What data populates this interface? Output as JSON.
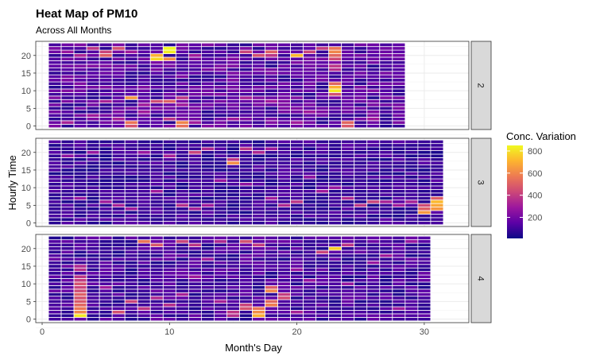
{
  "chart_data": {
    "type": "heatmap",
    "title": "Heat Map of PM10",
    "subtitle": "Across All Months",
    "xlabel": "Month's Day",
    "ylabel": "Hourly Time",
    "xlim": [
      -0.5,
      33.5
    ],
    "ylim": [
      -1,
      24
    ],
    "x_ticks": [
      0,
      10,
      20,
      30
    ],
    "y_ticks": [
      0,
      5,
      10,
      15,
      20
    ],
    "grid": true,
    "legend": {
      "title": "Conc. Variation",
      "position": "right",
      "min": 10,
      "max": 850,
      "ticks": [
        200,
        400,
        600,
        800
      ],
      "colors": [
        "#0d0887",
        "#5c01a6",
        "#9c179e",
        "#cc4778",
        "#ed7953",
        "#fdb42f",
        "#f0f921"
      ]
    },
    "panels": [
      {
        "strip": "2",
        "days": 28,
        "base": 140,
        "hot": [
          [
            2,
            21,
            280
          ],
          [
            3,
            20,
            330
          ],
          [
            4,
            22,
            380
          ],
          [
            5,
            21,
            420
          ],
          [
            5,
            20,
            500
          ],
          [
            6,
            22,
            460
          ],
          [
            7,
            21,
            300
          ],
          [
            9,
            19,
            780
          ],
          [
            9,
            20,
            700
          ],
          [
            10,
            21,
            820
          ],
          [
            10,
            22,
            850
          ],
          [
            10,
            19,
            620
          ],
          [
            12,
            20,
            300
          ],
          [
            16,
            21,
            420
          ],
          [
            17,
            20,
            460
          ],
          [
            18,
            21,
            500
          ],
          [
            18,
            20,
            380
          ],
          [
            20,
            20,
            720
          ],
          [
            21,
            21,
            420
          ],
          [
            22,
            22,
            400
          ],
          [
            23,
            20,
            520
          ],
          [
            23,
            21,
            600
          ],
          [
            23,
            22,
            560
          ],
          [
            23,
            19,
            440
          ],
          [
            23,
            17,
            380
          ],
          [
            23,
            16,
            360
          ],
          [
            23,
            10,
            820
          ],
          [
            23,
            11,
            700
          ],
          [
            23,
            12,
            520
          ],
          [
            23,
            9,
            460
          ],
          [
            5,
            7,
            320
          ],
          [
            7,
            8,
            640
          ],
          [
            8,
            6,
            300
          ],
          [
            9,
            7,
            440
          ],
          [
            10,
            7,
            500
          ],
          [
            11,
            6,
            300
          ],
          [
            11,
            8,
            380
          ],
          [
            11,
            1,
            600
          ],
          [
            11,
            0,
            540
          ],
          [
            10,
            2,
            380
          ],
          [
            12,
            1,
            300
          ],
          [
            6,
            2,
            320
          ],
          [
            7,
            1,
            560
          ],
          [
            7,
            0,
            460
          ],
          [
            8,
            4,
            300
          ],
          [
            24,
            1,
            520
          ],
          [
            24,
            0,
            480
          ],
          [
            4,
            3,
            300
          ],
          [
            2,
            1,
            320
          ],
          [
            15,
            2,
            300
          ],
          [
            20,
            1,
            300
          ],
          [
            16,
            8,
            320
          ],
          [
            18,
            7,
            300
          ],
          [
            21,
            4,
            300
          ],
          [
            26,
            2,
            300
          ]
        ]
      },
      {
        "strip": "3",
        "days": 31,
        "base": 90,
        "hot": [
          [
            31,
            6,
            720
          ],
          [
            31,
            5,
            680
          ],
          [
            31,
            4,
            640
          ],
          [
            31,
            7,
            500
          ],
          [
            30,
            3,
            640
          ],
          [
            30,
            4,
            500
          ],
          [
            30,
            5,
            440
          ],
          [
            15,
            17,
            620
          ],
          [
            15,
            18,
            380
          ],
          [
            12,
            20,
            420
          ],
          [
            13,
            21,
            340
          ],
          [
            16,
            21,
            380
          ],
          [
            17,
            20,
            340
          ],
          [
            18,
            21,
            300
          ],
          [
            26,
            6,
            420
          ],
          [
            25,
            5,
            380
          ],
          [
            24,
            7,
            340
          ],
          [
            27,
            6,
            320
          ],
          [
            28,
            5,
            300
          ],
          [
            29,
            6,
            320
          ],
          [
            20,
            6,
            380
          ],
          [
            19,
            5,
            340
          ],
          [
            18,
            7,
            300
          ],
          [
            11,
            5,
            360
          ],
          [
            12,
            4,
            320
          ],
          [
            13,
            5,
            300
          ],
          [
            5,
            6,
            300
          ],
          [
            6,
            5,
            320
          ],
          [
            7,
            4,
            300
          ],
          [
            3,
            7,
            280
          ],
          [
            22,
            9,
            300
          ],
          [
            23,
            10,
            280
          ],
          [
            9,
            9,
            300
          ],
          [
            8,
            20,
            280
          ],
          [
            10,
            19,
            320
          ],
          [
            4,
            20,
            280
          ],
          [
            2,
            19,
            260
          ],
          [
            14,
            12,
            280
          ],
          [
            16,
            11,
            260
          ],
          [
            21,
            13,
            260
          ]
        ]
      },
      {
        "strip": "4",
        "days": 30,
        "base": 110,
        "hot": [
          [
            3,
            1,
            820
          ],
          [
            3,
            2,
            600
          ],
          [
            3,
            3,
            560
          ],
          [
            3,
            4,
            520
          ],
          [
            3,
            5,
            480
          ],
          [
            3,
            6,
            460
          ],
          [
            3,
            7,
            500
          ],
          [
            3,
            8,
            440
          ],
          [
            3,
            9,
            420
          ],
          [
            3,
            10,
            460
          ],
          [
            3,
            11,
            400
          ],
          [
            3,
            12,
            380
          ],
          [
            3,
            14,
            360
          ],
          [
            3,
            15,
            340
          ],
          [
            8,
            22,
            560
          ],
          [
            9,
            21,
            480
          ],
          [
            11,
            22,
            420
          ],
          [
            12,
            21,
            380
          ],
          [
            14,
            22,
            340
          ],
          [
            16,
            22,
            460
          ],
          [
            17,
            21,
            400
          ],
          [
            17,
            1,
            700
          ],
          [
            17,
            2,
            620
          ],
          [
            17,
            3,
            560
          ],
          [
            18,
            4,
            580
          ],
          [
            18,
            5,
            520
          ],
          [
            18,
            8,
            600
          ],
          [
            18,
            9,
            480
          ],
          [
            19,
            6,
            440
          ],
          [
            19,
            7,
            400
          ],
          [
            16,
            3,
            460
          ],
          [
            16,
            4,
            420
          ],
          [
            15,
            2,
            380
          ],
          [
            15,
            1,
            360
          ],
          [
            23,
            20,
            760
          ],
          [
            22,
            19,
            420
          ],
          [
            24,
            21,
            380
          ],
          [
            7,
            5,
            420
          ],
          [
            6,
            2,
            460
          ],
          [
            8,
            3,
            380
          ],
          [
            9,
            6,
            340
          ],
          [
            10,
            4,
            360
          ],
          [
            11,
            7,
            320
          ],
          [
            5,
            9,
            300
          ],
          [
            12,
            12,
            300
          ],
          [
            20,
            14,
            280
          ],
          [
            24,
            10,
            280
          ],
          [
            26,
            16,
            280
          ],
          [
            28,
            3,
            300
          ],
          [
            27,
            18,
            300
          ],
          [
            29,
            22,
            280
          ],
          [
            13,
            17,
            300
          ],
          [
            21,
            11,
            280
          ],
          [
            14,
            5,
            320
          ],
          [
            20,
            2,
            320
          ]
        ]
      }
    ]
  }
}
